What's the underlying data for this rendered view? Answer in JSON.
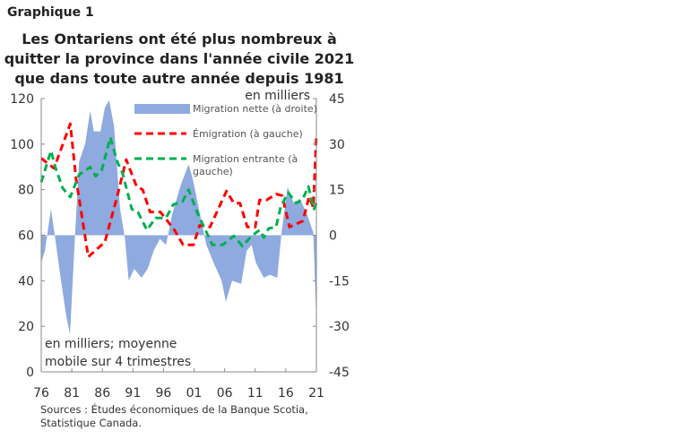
{
  "header": {
    "label": "Graphique 1",
    "title": "Les Ontariens ont été plus nombreux à quitter la province dans l'année civile 2021 que dans toute autre année depuis 1981"
  },
  "sources": "Sources : Études économiques de la Banque Scotia, Statistique Canada.",
  "chart_data": {
    "type": "line",
    "title": "Les Ontariens ont été plus nombreux à quitter la province dans l'année civile 2021 que dans toute autre année depuis 1981",
    "annotation_left": "en milliers; moyenne mobile sur 4 trimestres",
    "ylabel_right": "en milliers",
    "xlim": [
      1976,
      2021
    ],
    "x_ticks": [
      "76",
      "81",
      "86",
      "91",
      "96",
      "01",
      "06",
      "11",
      "16",
      "21"
    ],
    "ylim_left": [
      0,
      120
    ],
    "y_ticks_left": [
      "0",
      "20",
      "40",
      "60",
      "80",
      "100",
      "120"
    ],
    "ylim_right": [
      -45,
      45
    ],
    "y_ticks_right": [
      "-45",
      "-30",
      "-15",
      "0",
      "15",
      "30",
      "45"
    ],
    "grid": false,
    "legend_placement": "top-right",
    "colors": {
      "net": "#8eaadf",
      "emigration": "#ff0000",
      "immigration": "#00b050"
    },
    "series": [
      {
        "name": "Migration nette (à droite)",
        "axis": "right",
        "style": "area",
        "x": [
          1976.0,
          1976.6,
          1977.6,
          1978.3,
          1979.1,
          1980.1,
          1980.7,
          1981.5,
          1982.2,
          1983.2,
          1984.0,
          1984.6,
          1985.7,
          1986.4,
          1987.1,
          1987.9,
          1988.9,
          1989.7,
          1990.3,
          1991.2,
          1992.4,
          1993.4,
          1994.4,
          1995.4,
          1996.4,
          1997.4,
          1998.8,
          2000.1,
          2000.8,
          2001.8,
          2003.0,
          2004.2,
          2005.5,
          2006.2,
          2007.2,
          2008.7,
          2009.6,
          2010.4,
          2011.1,
          2012.4,
          2013.4,
          2014.6,
          2015.3,
          2016.3,
          2017.3,
          2018.3,
          2019.5,
          2020.5,
          2021.0
        ],
        "values": [
          -9.1,
          -5.1,
          8.6,
          -1.2,
          -13,
          -26.8,
          -32.7,
          -1.2,
          24.3,
          30.2,
          41,
          34.2,
          34.2,
          42,
          44.5,
          36.1,
          8.6,
          -1.2,
          -15,
          -11.1,
          -14,
          -11.1,
          -5.1,
          -1.2,
          -3.2,
          6.7,
          16.4,
          23.3,
          18.4,
          8.6,
          -3.2,
          -9.1,
          -15,
          -21.9,
          -15,
          -16,
          -5.1,
          -3.2,
          -9.1,
          -14,
          -13,
          -14,
          0.8,
          15.9,
          10.5,
          12,
          6.7,
          0.8,
          -28.8
        ]
      },
      {
        "name": "Émigration (à gauche)",
        "axis": "left",
        "style": "dashed",
        "x": [
          1976.0,
          1978.1,
          1980.75,
          1981.7,
          1983.7,
          1986.4,
          1988.4,
          1989.9,
          1991.6,
          1992.6,
          1993.8,
          1995.5,
          1997.8,
          1999.2,
          2000.9,
          2001.9,
          2003.6,
          2006.3,
          2007.5,
          2008.5,
          2009.7,
          2011.0,
          2011.7,
          2012.9,
          2014.4,
          2015.4,
          2016.6,
          2018.8,
          2019.8,
          2020.5,
          2021.0
        ],
        "values": [
          93.8,
          89.4,
          108.9,
          84.6,
          50.5,
          57,
          76.8,
          93.2,
          81.4,
          80,
          70.2,
          70.2,
          62.3,
          55.8,
          55.8,
          64.3,
          63.6,
          79.4,
          74.1,
          74.1,
          63.6,
          63.6,
          75.5,
          75.5,
          78.1,
          77.4,
          63.6,
          66.3,
          76.8,
          72.2,
          104.3
        ]
      },
      {
        "name": "Migration entrante (à gauche)",
        "axis": "left",
        "style": "dashed",
        "x": [
          1976.0,
          1977.6,
          1978.3,
          1979.5,
          1980.75,
          1982.2,
          1984.0,
          1984.9,
          1985.9,
          1987.3,
          1988.4,
          1989.3,
          1990.8,
          1991.8,
          1993.3,
          1994.7,
          1996.4,
          1997.6,
          1999.1,
          2000.1,
          2001.6,
          2002.5,
          2004.0,
          2005.7,
          2007.5,
          2008.9,
          2010.4,
          2011.7,
          2012.4,
          2013.2,
          2014.4,
          2015.2,
          2016.4,
          2017.7,
          2018.7,
          2019.7,
          2020.6,
          2021.0
        ],
        "values": [
          83.3,
          97.1,
          89.9,
          80.7,
          76.8,
          86.6,
          89.9,
          85.9,
          88.5,
          103,
          92.5,
          87.3,
          71.5,
          70.2,
          62.3,
          67.6,
          67.6,
          73.5,
          74.8,
          80,
          69.5,
          64.3,
          55.8,
          55.8,
          59.7,
          55.2,
          59.7,
          62.3,
          59,
          63,
          63.6,
          72.8,
          78.7,
          74.1,
          75.5,
          81.4,
          71.5,
          74.1
        ]
      }
    ]
  }
}
